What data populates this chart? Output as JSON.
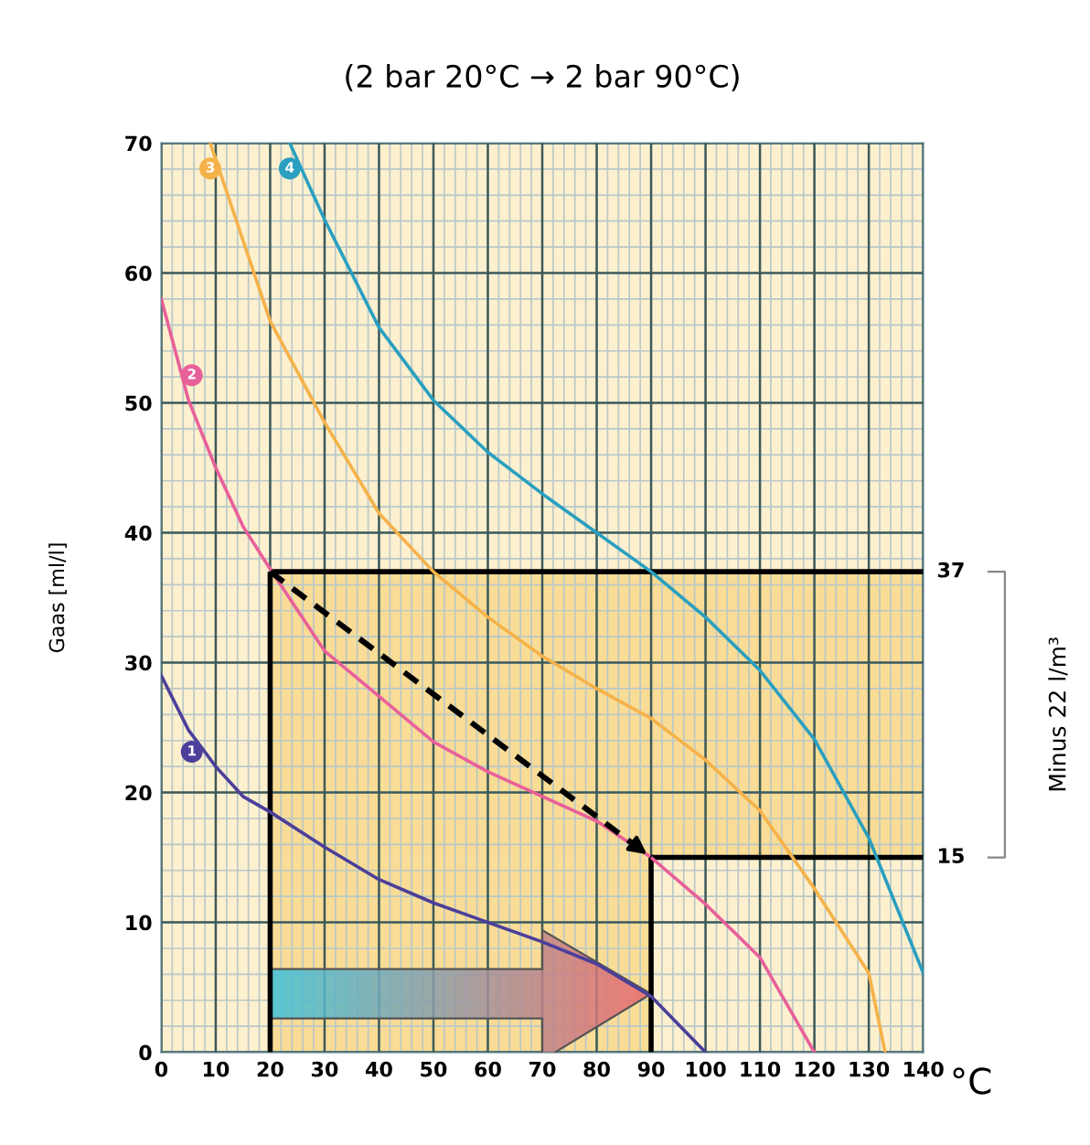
{
  "chart_data": {
    "type": "line",
    "title": "(2 bar 20°C → 2 bar 90°C)",
    "xlabel": "°C",
    "ylabel": "Gaas [ml/l]",
    "xlim": [
      0,
      140
    ],
    "ylim": [
      0,
      70
    ],
    "xticks": [
      0,
      10,
      20,
      30,
      40,
      50,
      60,
      70,
      80,
      90,
      100,
      110,
      120,
      130,
      140
    ],
    "yticks": [
      0,
      10,
      20,
      30,
      40,
      50,
      60,
      70
    ],
    "grid": true,
    "marker": "none",
    "line_style": "solid",
    "series": [
      {
        "name": "1",
        "color": "#4b3f9a",
        "x": [
          0,
          5,
          10,
          15,
          20,
          30,
          40,
          50,
          60,
          70,
          80,
          90,
          100
        ],
        "values": [
          29,
          24.8,
          22,
          19.7,
          18.5,
          15.8,
          13.3,
          11.5,
          10,
          8.5,
          6.8,
          4.3,
          0
        ]
      },
      {
        "name": "2",
        "color": "#e8609a",
        "x": [
          0,
          5,
          10,
          15,
          20,
          30,
          40,
          50,
          60,
          70,
          80,
          90,
          100,
          110,
          120
        ],
        "values": [
          58,
          50.2,
          45,
          40.5,
          37.2,
          30.9,
          27.4,
          23.9,
          21.6,
          19.7,
          17.8,
          15,
          11.4,
          7.3,
          0
        ]
      },
      {
        "name": "3",
        "color": "#f5b24a",
        "x": [
          9,
          20,
          30,
          40,
          50,
          60,
          70,
          80,
          90,
          100,
          110,
          120,
          130,
          133
        ],
        "values": [
          70,
          56.3,
          48.5,
          41.5,
          37,
          33.5,
          30.5,
          28,
          25.7,
          22.5,
          18.6,
          12.6,
          6.1,
          0
        ]
      },
      {
        "name": "4",
        "color": "#2a9fc0",
        "x": [
          23.6,
          30,
          40,
          50,
          60,
          70,
          80,
          90,
          100,
          110,
          120,
          130,
          140
        ],
        "values": [
          70,
          64.1,
          55.8,
          50.2,
          46.2,
          43,
          40,
          37,
          33.5,
          29.4,
          24.1,
          16.5,
          6.1
        ]
      },
      {
        "color": "#000000",
        "line_style": "dashed",
        "x": [
          20,
          90
        ],
        "values": [
          37,
          15
        ]
      }
    ],
    "ref_lines": [
      {
        "axis": "y",
        "value": 37,
        "label": "37",
        "color": "#000000"
      },
      {
        "axis": "y",
        "value": 15,
        "label": "15",
        "color": "#000000"
      },
      {
        "axis": "x",
        "value": 20,
        "color": "#000000"
      },
      {
        "axis": "x",
        "value": 90,
        "color": "#000000"
      }
    ],
    "bands": [
      {
        "axis": "y",
        "from": 15,
        "to": 37,
        "color": "#f9dc95"
      },
      {
        "axis": "x",
        "from": 20,
        "to": 90,
        "color": "#f9dc95"
      }
    ],
    "annotations": [
      "Minus 22 l/m³"
    ]
  }
}
